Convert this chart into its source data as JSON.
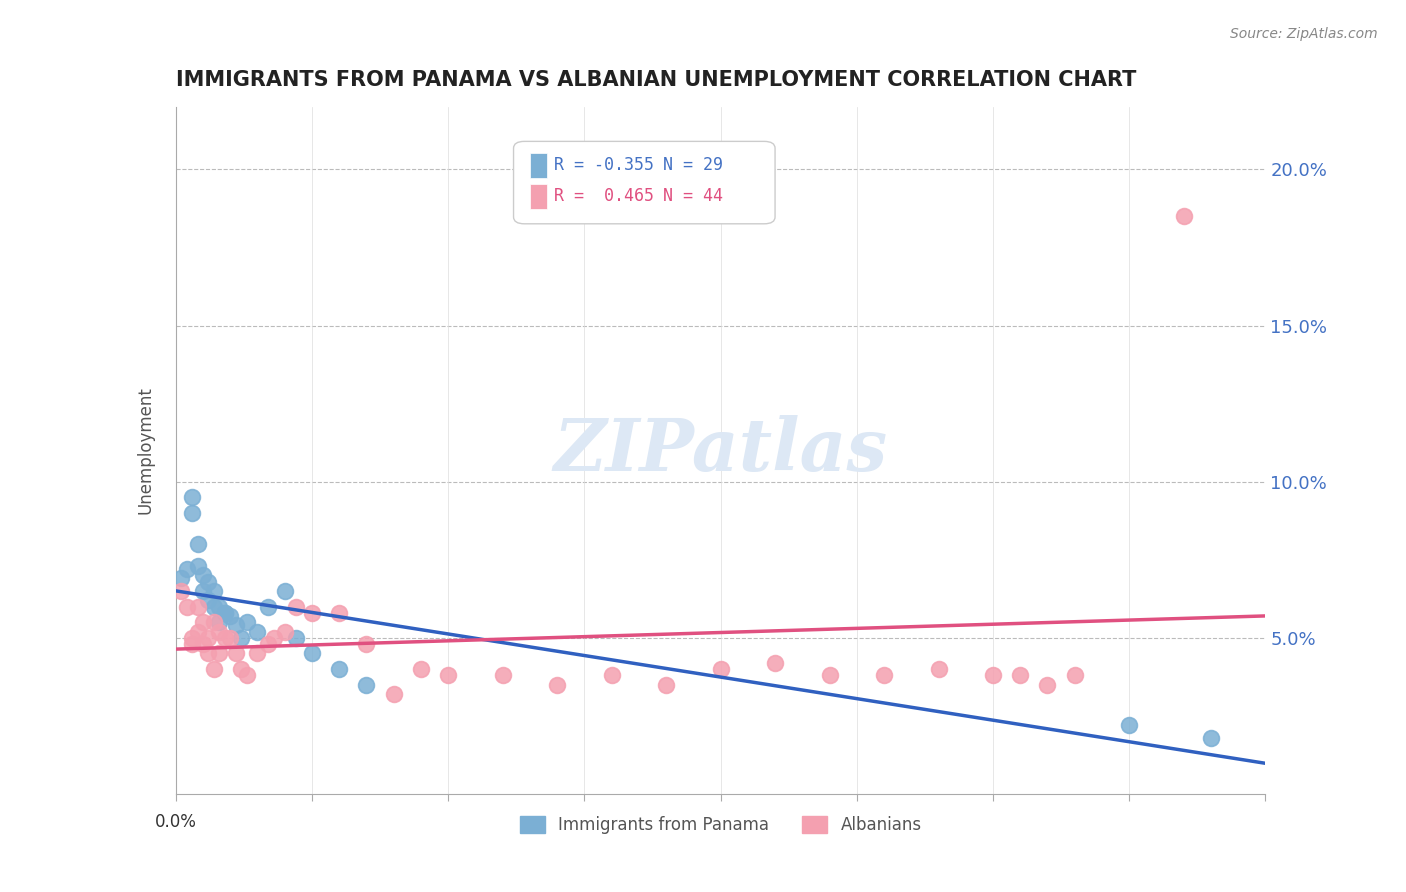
{
  "title": "IMMIGRANTS FROM PANAMA VS ALBANIAN UNEMPLOYMENT CORRELATION CHART",
  "source": "Source: ZipAtlas.com",
  "ylabel": "Unemployment",
  "yaxis_labels": [
    "5.0%",
    "10.0%",
    "15.0%",
    "20.0%"
  ],
  "yaxis_values": [
    0.05,
    0.1,
    0.15,
    0.2
  ],
  "blue_color": "#7bafd4",
  "pink_color": "#f4a0b0",
  "blue_line_color": "#3060c0",
  "pink_line_color": "#e05080",
  "panama_x": [
    0.001,
    0.002,
    0.003,
    0.003,
    0.004,
    0.004,
    0.005,
    0.005,
    0.006,
    0.006,
    0.007,
    0.007,
    0.008,
    0.008,
    0.009,
    0.009,
    0.01,
    0.011,
    0.012,
    0.013,
    0.015,
    0.017,
    0.02,
    0.022,
    0.025,
    0.03,
    0.035,
    0.175,
    0.19
  ],
  "panama_y": [
    0.069,
    0.072,
    0.095,
    0.09,
    0.08,
    0.073,
    0.07,
    0.065,
    0.068,
    0.062,
    0.065,
    0.06,
    0.055,
    0.06,
    0.058,
    0.058,
    0.057,
    0.054,
    0.05,
    0.055,
    0.052,
    0.06,
    0.065,
    0.05,
    0.045,
    0.04,
    0.035,
    0.022,
    0.018
  ],
  "albanian_x": [
    0.001,
    0.002,
    0.003,
    0.003,
    0.004,
    0.004,
    0.005,
    0.005,
    0.006,
    0.006,
    0.007,
    0.007,
    0.008,
    0.008,
    0.009,
    0.01,
    0.011,
    0.012,
    0.013,
    0.015,
    0.017,
    0.018,
    0.02,
    0.022,
    0.025,
    0.03,
    0.035,
    0.04,
    0.045,
    0.05,
    0.06,
    0.07,
    0.08,
    0.09,
    0.1,
    0.11,
    0.12,
    0.13,
    0.14,
    0.15,
    0.155,
    0.16,
    0.165,
    0.185
  ],
  "albanian_y": [
    0.065,
    0.06,
    0.05,
    0.048,
    0.06,
    0.052,
    0.055,
    0.048,
    0.05,
    0.045,
    0.055,
    0.04,
    0.052,
    0.045,
    0.05,
    0.05,
    0.045,
    0.04,
    0.038,
    0.045,
    0.048,
    0.05,
    0.052,
    0.06,
    0.058,
    0.058,
    0.048,
    0.032,
    0.04,
    0.038,
    0.038,
    0.035,
    0.038,
    0.035,
    0.04,
    0.042,
    0.038,
    0.038,
    0.04,
    0.038,
    0.038,
    0.035,
    0.038,
    0.185
  ],
  "xlim": [
    0.0,
    0.2
  ],
  "ylim": [
    0.0,
    0.22
  ]
}
